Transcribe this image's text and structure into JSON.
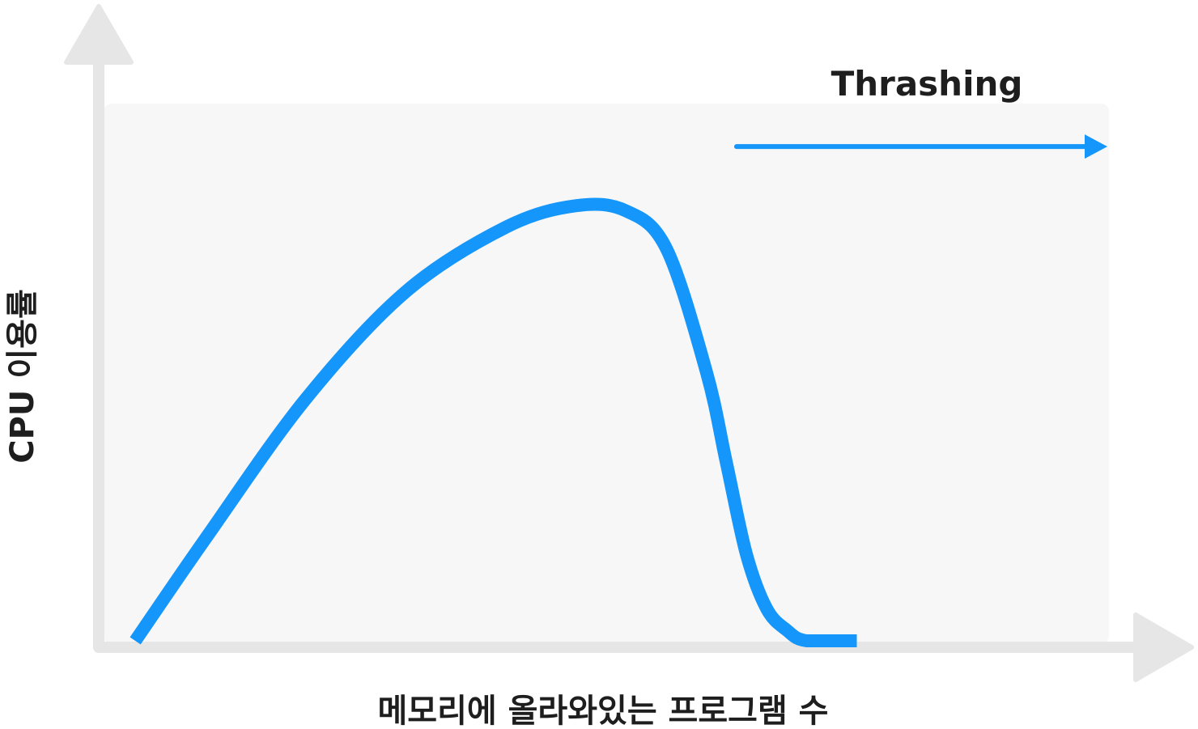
{
  "chart_data": {
    "type": "line",
    "title": "",
    "xlabel": "메모리에 올라와있는 프로그램 수",
    "ylabel": "CPU 이용률",
    "grid": false,
    "legend": "none",
    "x_ticks": "none",
    "y_ticks": "none",
    "x_range": [
      0,
      100
    ],
    "y_range": [
      0,
      100
    ],
    "series": [
      {
        "color": "#1596fb",
        "x": [
          3,
          10,
          20,
          30,
          40,
          47,
          52,
          56,
          60,
          62,
          64,
          66,
          68,
          70,
          75
        ],
        "y": [
          0,
          19,
          45,
          65,
          77,
          81,
          80,
          73,
          50,
          33,
          16,
          6,
          2,
          0,
          0
        ]
      }
    ],
    "annotations": [
      {
        "text": "Thrashing",
        "arrow_from_x": 63,
        "arrow_to_x": 100,
        "arrow_y": 92
      }
    ],
    "colors": {
      "axis": "#e6e6e6",
      "plot_background": "#f7f7f7",
      "curve": "#1596fb",
      "text": "#1e1e1e"
    }
  }
}
